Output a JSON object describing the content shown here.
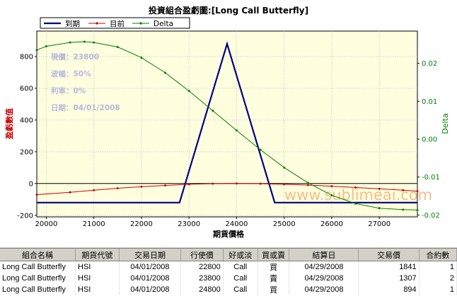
{
  "chart_data": {
    "type": "line",
    "title": "投資組合盈虧圖:[Long Call Butterfly]",
    "xlabel": "期貨價格",
    "ylabel": "盈虧數值",
    "y2label": "Delta",
    "xlim": [
      19800,
      27800
    ],
    "ylim": [
      -210,
      960
    ],
    "y2lim": [
      -0.0205,
      0.0285
    ],
    "x_ticks": [
      "20000",
      "21000",
      "22000",
      "23000",
      "24000",
      "25000",
      "26000",
      "27000"
    ],
    "y_ticks": [
      "-200",
      "0",
      "200",
      "400",
      "600",
      "800"
    ],
    "y2_ticks": [
      "-0.02",
      "-0.01",
      "0.00",
      "0.01",
      "0.02"
    ],
    "legend": [
      "到期",
      "目前",
      "Delta"
    ],
    "legend_position": "top-left",
    "series": [
      {
        "name": "到期",
        "axis": "left",
        "color": "#000080",
        "x": [
          19800,
          22800,
          23800,
          24800,
          27800
        ],
        "y": [
          -120,
          -120,
          880,
          -120,
          -120
        ]
      },
      {
        "name": "目前",
        "axis": "left",
        "color": "#cc0000",
        "x": [
          19800,
          20500,
          21000,
          21500,
          22000,
          22500,
          23000,
          23500,
          24000,
          24500,
          25000,
          25500,
          26000,
          26500,
          27000,
          27500,
          27800
        ],
        "y": [
          -70,
          -55,
          -42,
          -30,
          -20,
          -12,
          -5,
          -1,
          0,
          -1,
          -5,
          -10,
          -17,
          -25,
          -33,
          -42,
          -48
        ]
      },
      {
        "name": "Delta",
        "axis": "right",
        "color": "#008000",
        "x": [
          19800,
          20000,
          20500,
          20800,
          21000,
          21500,
          22000,
          22500,
          23000,
          23500,
          24000,
          24500,
          25000,
          25500,
          26000,
          26500,
          27000,
          27500,
          27800
        ],
        "y": [
          0.0235,
          0.0245,
          0.0255,
          0.0257,
          0.0255,
          0.0243,
          0.0215,
          0.0175,
          0.0127,
          0.0075,
          0.0023,
          -0.0028,
          -0.0075,
          -0.0115,
          -0.0148,
          -0.017,
          -0.0182,
          -0.0186,
          -0.0187
        ]
      }
    ],
    "annotations": [
      "現價：23800",
      "波幅：50%",
      "利率：0%",
      "日期：04/01/2008"
    ],
    "watermark": "www.sublimeai.com",
    "grid": true,
    "background": "#ffffe0"
  },
  "table": {
    "headers": [
      "組合名稱",
      "期貨代號",
      "交易日期",
      "行使價",
      "好或淡",
      "買或賣",
      "結算日",
      "交易價",
      "合約數"
    ],
    "rows": [
      [
        "Long Call Butterfly",
        "HSI",
        "04/01/2008",
        "22800",
        "Call",
        "買",
        "04/29/2008",
        "1841",
        "1"
      ],
      [
        "Long Call Butterfly",
        "HSI",
        "04/01/2008",
        "23800",
        "Call",
        "賣",
        "04/29/2008",
        "1307",
        "2"
      ],
      [
        "Long Call Butterfly",
        "HSI",
        "04/01/2008",
        "24800",
        "Call",
        "買",
        "04/29/2008",
        "894",
        "1"
      ]
    ]
  }
}
